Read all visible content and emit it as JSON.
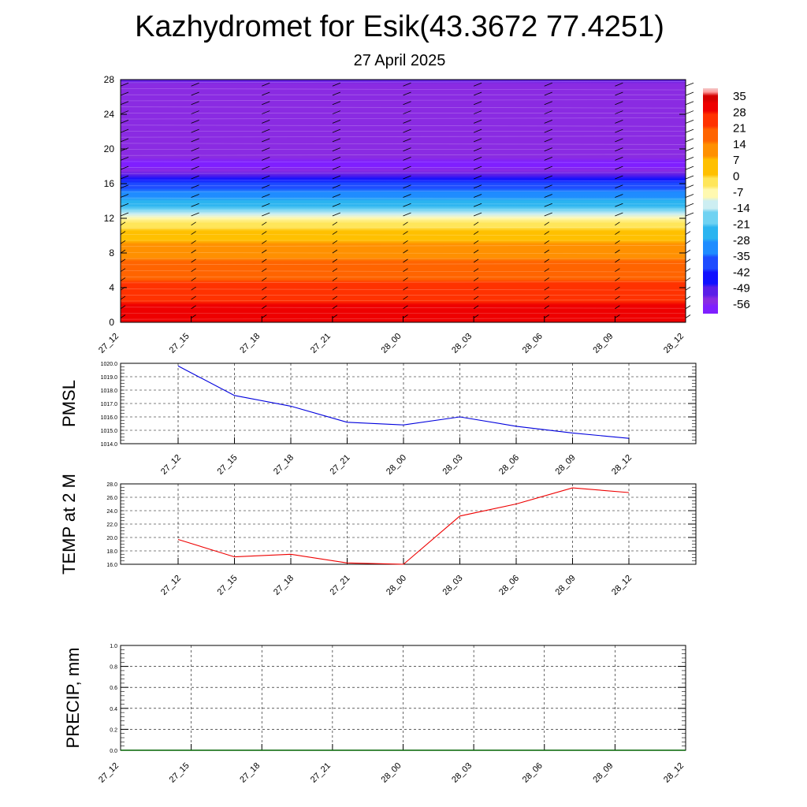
{
  "title": "Kazhydromet for Esik(43.3672 77.4251)",
  "subtitle": "27 April 2025",
  "colors": {
    "pmsl_line": "#0000dd",
    "temp_line": "#ee0000",
    "precip_line": "#006400",
    "grid": "#000000",
    "frame": "#000000"
  },
  "chart_data": [
    {
      "type": "heatmap",
      "name_hint": "vertical cross-section",
      "x_ticks": [
        "27_12",
        "27_15",
        "27_18",
        "27_21",
        "28_00",
        "28_03",
        "28_06",
        "28_09",
        "28_12"
      ],
      "y_ticks": [
        0,
        4,
        8,
        12,
        16,
        20,
        24,
        28
      ],
      "ylim": [
        0,
        28
      ],
      "colorbar_labels": [
        "35",
        "28",
        "21",
        "14",
        "7",
        "0",
        "-7",
        "-14",
        "-21",
        "-28",
        "-35",
        "-42",
        "-49",
        "-56"
      ],
      "colorbar_range": [
        -60,
        38
      ],
      "temperature_profile": [
        {
          "level": 0,
          "value": 32
        },
        {
          "level": 2,
          "value": 28
        },
        {
          "level": 4,
          "value": 23
        },
        {
          "level": 6,
          "value": 18
        },
        {
          "level": 8,
          "value": 12
        },
        {
          "level": 10,
          "value": 5
        },
        {
          "level": 12,
          "value": -8
        },
        {
          "level": 13,
          "value": -18
        },
        {
          "level": 14,
          "value": -28
        },
        {
          "level": 16,
          "value": -42
        },
        {
          "level": 17,
          "value": -52
        },
        {
          "level": 18,
          "value": -58
        },
        {
          "level": 19,
          "value": -56
        },
        {
          "level": 22,
          "value": -54
        },
        {
          "level": 28,
          "value": -52
        }
      ]
    },
    {
      "type": "line",
      "ylabel": "PMSL",
      "ylim": [
        1014.0,
        1020.0
      ],
      "y_ticks": [
        "1014.0",
        "1015.0",
        "1016.0",
        "1017.0",
        "1018.0",
        "1019.0",
        "1020.0"
      ],
      "categories": [
        "27_12",
        "27_15",
        "27_18",
        "27_21",
        "28_00",
        "28_03",
        "28_06",
        "28_09",
        "28_12"
      ],
      "values": [
        1019.8,
        1017.6,
        1016.8,
        1015.6,
        1015.4,
        1016.0,
        1015.3,
        1014.8,
        1014.4
      ]
    },
    {
      "type": "line",
      "ylabel": "TEMP at 2 M",
      "ylim": [
        16.0,
        28.0
      ],
      "y_ticks": [
        "16.0",
        "18.0",
        "20.0",
        "22.0",
        "24.0",
        "26.0",
        "28.0"
      ],
      "categories": [
        "27_12",
        "27_15",
        "27_18",
        "27_21",
        "28_00",
        "28_03",
        "28_06",
        "28_09",
        "28_12"
      ],
      "values": [
        19.7,
        17.1,
        17.5,
        16.2,
        16.0,
        23.2,
        25.0,
        27.4,
        26.7
      ]
    },
    {
      "type": "line",
      "ylabel": "PRECIP, mm",
      "ylim": [
        0.0,
        1.0
      ],
      "y_ticks": [
        "0.0",
        "0.2",
        "0.4",
        "0.6",
        "0.8",
        "1.0"
      ],
      "categories": [
        "27_12",
        "27_15",
        "27_18",
        "27_21",
        "28_00",
        "28_03",
        "28_06",
        "28_09",
        "28_12"
      ],
      "values": [
        0,
        0,
        0,
        0,
        0,
        0,
        0,
        0,
        0
      ]
    }
  ]
}
